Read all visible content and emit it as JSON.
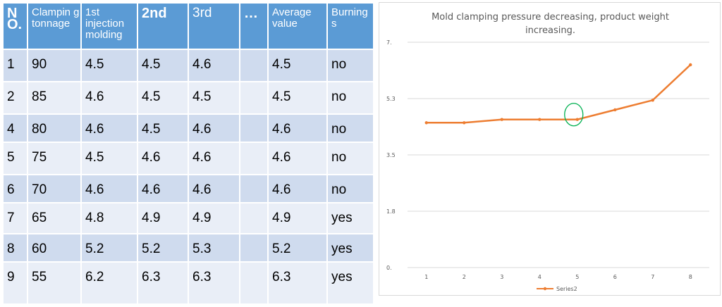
{
  "table": {
    "headers": [
      "N O.",
      "Clampin g tonnage",
      "1st injection molding",
      "2nd",
      "3rd",
      "…",
      "Average value",
      "Burning s"
    ],
    "rows": [
      [
        "1",
        "90",
        "4.5",
        "4.5",
        "4.6",
        "",
        "4.5",
        "no"
      ],
      [
        "2",
        "85",
        "4.6",
        "4.5",
        "4.5",
        "",
        "4.5",
        "no"
      ],
      [
        "4",
        "80",
        "4.6",
        "4.5",
        "4.6",
        "",
        "4.6",
        "no"
      ],
      [
        "5",
        "75",
        "4.5",
        "4.6",
        "4.6",
        "",
        "4.6",
        "no"
      ],
      [
        "6",
        "70",
        "4.6",
        "4.6",
        "4.6",
        "",
        "4.6",
        "no"
      ],
      [
        "7",
        "65",
        "4.8",
        "4.9",
        "4.9",
        "",
        "4.9",
        "yes"
      ],
      [
        "8",
        "60",
        "5.2",
        "5.2",
        "5.3",
        "",
        "5.2",
        "yes"
      ],
      [
        "9",
        "55",
        "6.2",
        "6.3",
        "6.3",
        "",
        "6.3",
        "yes"
      ]
    ]
  },
  "chart_data": {
    "type": "line",
    "title": "Mold clamping pressure decreasing, product weight increasing.",
    "x": [
      1,
      2,
      3,
      4,
      5,
      6,
      7,
      8
    ],
    "series": [
      {
        "name": "Series2",
        "values": [
          4.5,
          4.5,
          4.6,
          4.6,
          4.6,
          4.9,
          5.2,
          6.3
        ],
        "color": "#ed7d31"
      }
    ],
    "y_ticks": [
      "0.",
      "1.8",
      "3.5",
      "5.3",
      "7."
    ],
    "ylim": [
      0,
      7
    ],
    "grid": true,
    "legend": "bottom",
    "annotation": {
      "shape": "circle",
      "at_x": 5,
      "color": "#00b050"
    }
  }
}
